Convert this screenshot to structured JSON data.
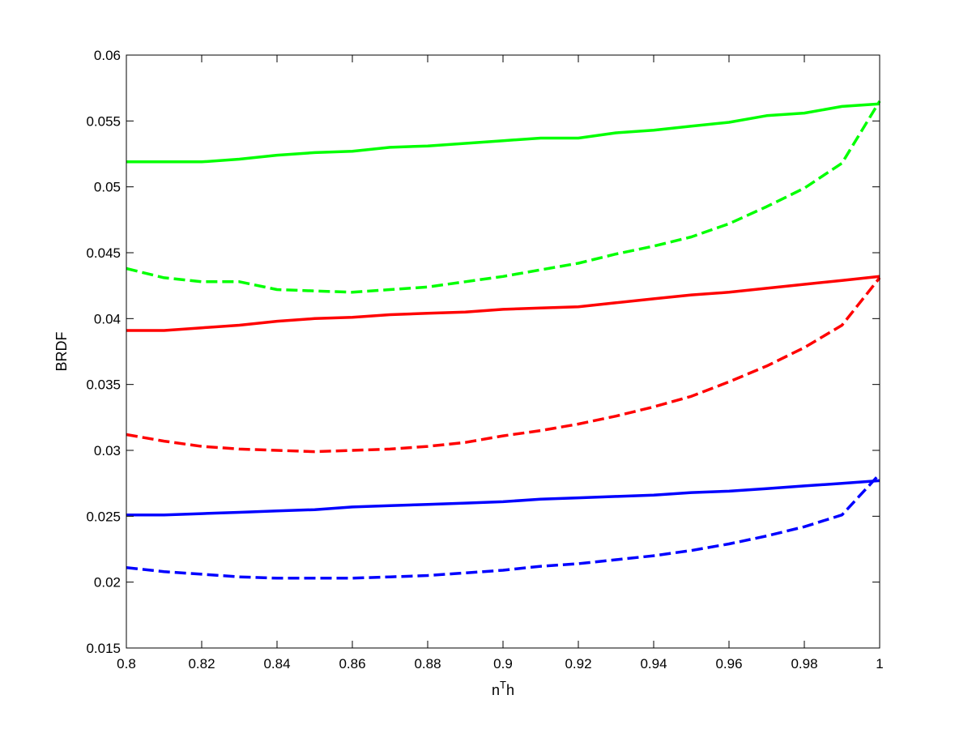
{
  "chart_data": {
    "type": "line",
    "title": "",
    "xlabel_base": "n",
    "xlabel_sup": "T",
    "xlabel_tail": "h",
    "ylabel": "BRDF",
    "xlim": [
      0.8,
      1.0
    ],
    "ylim": [
      0.015,
      0.06
    ],
    "grid": false,
    "legend": "none",
    "xticks": [
      0.8,
      0.82,
      0.84,
      0.86,
      0.88,
      0.9,
      0.92,
      0.94,
      0.96,
      0.98,
      1.0
    ],
    "xtick_labels": [
      "0.8",
      "0.82",
      "0.84",
      "0.86",
      "0.88",
      "0.9",
      "0.92",
      "0.94",
      "0.96",
      "0.98",
      "1"
    ],
    "yticks": [
      0.015,
      0.02,
      0.025,
      0.03,
      0.035,
      0.04,
      0.045,
      0.05,
      0.055,
      0.06
    ],
    "ytick_labels": [
      "0.015",
      "0.02",
      "0.025",
      "0.03",
      "0.035",
      "0.04",
      "0.045",
      "0.05",
      "0.055",
      "0.06"
    ],
    "x": [
      0.8,
      0.81,
      0.82,
      0.83,
      0.84,
      0.85,
      0.86,
      0.87,
      0.88,
      0.89,
      0.9,
      0.91,
      0.92,
      0.93,
      0.94,
      0.95,
      0.96,
      0.97,
      0.98,
      0.99,
      1.0
    ],
    "series": [
      {
        "color": "#00ff00",
        "style": "solid",
        "values": [
          0.0519,
          0.0519,
          0.0519,
          0.0521,
          0.0524,
          0.0526,
          0.0527,
          0.053,
          0.0531,
          0.0533,
          0.0535,
          0.0537,
          0.0537,
          0.0541,
          0.0543,
          0.0546,
          0.0549,
          0.0554,
          0.0556,
          0.0561,
          0.0563
        ]
      },
      {
        "color": "#00ff00",
        "style": "dashed",
        "values": [
          0.0438,
          0.0431,
          0.0428,
          0.0428,
          0.0422,
          0.0421,
          0.042,
          0.0422,
          0.0424,
          0.0428,
          0.0432,
          0.0437,
          0.0442,
          0.0449,
          0.0455,
          0.0462,
          0.0472,
          0.0485,
          0.0499,
          0.0518,
          0.0565
        ]
      },
      {
        "color": "#ff0000",
        "style": "solid",
        "values": [
          0.0391,
          0.0391,
          0.0393,
          0.0395,
          0.0398,
          0.04,
          0.0401,
          0.0403,
          0.0404,
          0.0405,
          0.0407,
          0.0408,
          0.0409,
          0.0412,
          0.0415,
          0.0418,
          0.042,
          0.0423,
          0.0426,
          0.0429,
          0.0432
        ]
      },
      {
        "color": "#ff0000",
        "style": "dashed",
        "values": [
          0.0312,
          0.0307,
          0.0303,
          0.0301,
          0.03,
          0.0299,
          0.03,
          0.0301,
          0.0303,
          0.0306,
          0.0311,
          0.0315,
          0.032,
          0.0326,
          0.0333,
          0.0341,
          0.0352,
          0.0364,
          0.0378,
          0.0395,
          0.0431
        ]
      },
      {
        "color": "#0000ff",
        "style": "solid",
        "values": [
          0.0251,
          0.0251,
          0.0252,
          0.0253,
          0.0254,
          0.0255,
          0.0257,
          0.0258,
          0.0259,
          0.026,
          0.0261,
          0.0263,
          0.0264,
          0.0265,
          0.0266,
          0.0268,
          0.0269,
          0.0271,
          0.0273,
          0.0275,
          0.0277
        ]
      },
      {
        "color": "#0000ff",
        "style": "dashed",
        "values": [
          0.0211,
          0.0208,
          0.0206,
          0.0204,
          0.0203,
          0.0203,
          0.0203,
          0.0204,
          0.0205,
          0.0207,
          0.0209,
          0.0212,
          0.0214,
          0.0217,
          0.022,
          0.0224,
          0.0229,
          0.0235,
          0.0242,
          0.0251,
          0.0282
        ]
      }
    ]
  }
}
